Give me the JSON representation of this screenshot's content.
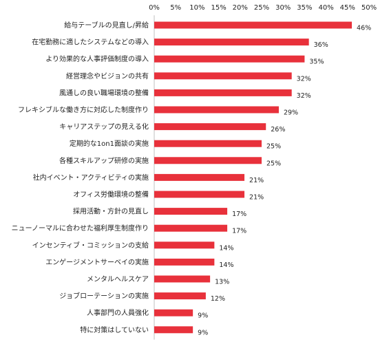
{
  "chart_data": {
    "type": "bar",
    "orientation": "horizontal",
    "title": "",
    "xlabel": "",
    "ylabel": "",
    "xlim": [
      0,
      50
    ],
    "x_ticks": [
      "0%",
      "5%",
      "10%",
      "15%",
      "20%",
      "25%",
      "30%",
      "35%",
      "40%",
      "45%",
      "50%"
    ],
    "axis_position": "top",
    "grid": false,
    "bar_color": "#e8313b",
    "categories": [
      "給与テーブルの見直し/昇給",
      "在宅勤務に適したシステムなどの導入",
      "より効果的な人事評価制度の導入",
      "経営理念やビジョンの共有",
      "風通しの良い職場環境の整備",
      "フレキシブルな働き方に対応した制度作り",
      "キャリアステップの見える化",
      "定期的な1on1面談の実施",
      "各種スキルアップ研修の実施",
      "社内イベント・アクティビティの実施",
      "オフィス労働環境の整備",
      "採用活動・方針の見直し",
      "ニューノーマルに合わせた福利厚生制度作り",
      "インセンティブ・コミッションの支給",
      "エンゲージメントサーベイの実施",
      "メンタルヘルスケア",
      "ジョブローテーションの実施",
      "人事部門の人員強化",
      "特に対策はしていない"
    ],
    "values": [
      46,
      36,
      35,
      32,
      32,
      29,
      26,
      25,
      25,
      21,
      21,
      17,
      17,
      14,
      14,
      13,
      12,
      9,
      9
    ],
    "value_labels": [
      "46%",
      "36%",
      "35%",
      "32%",
      "32%",
      "29%",
      "26%",
      "25%",
      "25%",
      "21%",
      "21%",
      "17%",
      "17%",
      "14%",
      "14%",
      "13%",
      "12%",
      "9%",
      "9%"
    ]
  }
}
